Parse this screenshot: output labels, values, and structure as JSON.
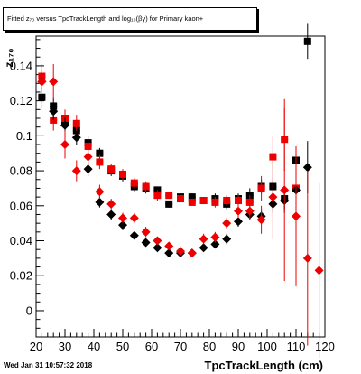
{
  "footer": {
    "timestamp": "Wed Jan 31 10:57:32 2018"
  },
  "chart_data": {
    "type": "scatter",
    "title": "Fitted  z₇₀ versus TpcTrackLength and log₁₀(βγ) for Primary kaon+",
    "xlabel": "TpcTrackLength (cm)",
    "ylabel": "z₁₇₀",
    "xlim": [
      20,
      120
    ],
    "ylim": [
      -0.015,
      0.157
    ],
    "x_ticks": [
      "20",
      "30",
      "40",
      "50",
      "60",
      "70",
      "80",
      "90",
      "100",
      "110",
      "120"
    ],
    "y_ticks": [
      "0",
      "0.02",
      "0.04",
      "0.06",
      "0.08",
      "0.1",
      "0.12",
      "0.14"
    ],
    "grid": false,
    "colors": {
      "black": "#000000",
      "red": "#ee0000"
    },
    "series": [
      {
        "color": "black",
        "marker": "square",
        "x": [
          22,
          26,
          30,
          34,
          38,
          42,
          46,
          50,
          54,
          58,
          62,
          66,
          70,
          74,
          78,
          82,
          86,
          90,
          94,
          98,
          102,
          106,
          110,
          114
        ],
        "y": [
          0.122,
          0.117,
          0.108,
          0.103,
          0.096,
          0.09,
          0.08,
          0.077,
          0.071,
          0.07,
          0.069,
          0.061,
          0.065,
          0.065,
          0.063,
          0.064,
          0.061,
          0.064,
          0.066,
          0.071,
          0.071,
          0.064,
          0.086,
          0.154
        ],
        "err": [
          0.006,
          0.005,
          0.005,
          0.004,
          0.004,
          0.003,
          0.003,
          0.003,
          0.003,
          0.003,
          0.002,
          0.002,
          0.002,
          0.002,
          0.002,
          0.003,
          0.003,
          0.003,
          0.004,
          0.004,
          0.005,
          0.006,
          0.008,
          0.01
        ]
      },
      {
        "color": "red",
        "marker": "square",
        "x": [
          22,
          26,
          30,
          34,
          38,
          42,
          46,
          50,
          54,
          58,
          62,
          66,
          70,
          74,
          78,
          82,
          86,
          90,
          94,
          98,
          102,
          106,
          110
        ],
        "y": [
          0.134,
          0.109,
          0.11,
          0.107,
          0.094,
          0.085,
          0.081,
          0.078,
          0.073,
          0.071,
          0.066,
          0.066,
          0.064,
          0.062,
          0.063,
          0.062,
          0.063,
          0.063,
          0.062,
          0.07,
          0.088,
          0.098,
          0.07
        ],
        "err": [
          0.007,
          0.006,
          0.005,
          0.005,
          0.004,
          0.004,
          0.003,
          0.003,
          0.003,
          0.003,
          0.003,
          0.002,
          0.002,
          0.002,
          0.002,
          0.003,
          0.003,
          0.003,
          0.004,
          0.007,
          0.012,
          0.018,
          0.012
        ]
      },
      {
        "color": "black",
        "marker": "diamond",
        "x": [
          22,
          26,
          30,
          34,
          38,
          42,
          46,
          50,
          54,
          58,
          62,
          66,
          70,
          74,
          78,
          82,
          86,
          90,
          94,
          98,
          102,
          106,
          110,
          114
        ],
        "y": [
          0.131,
          0.114,
          0.106,
          0.099,
          0.081,
          0.062,
          0.055,
          0.049,
          0.043,
          0.039,
          0.036,
          0.033,
          0.033,
          0.033,
          0.036,
          0.038,
          0.041,
          0.051,
          0.055,
          0.054,
          0.061,
          0.063,
          0.069,
          0.082
        ],
        "err": [
          0.006,
          0.005,
          0.005,
          0.004,
          0.004,
          0.003,
          0.003,
          0.003,
          0.002,
          0.002,
          0.002,
          0.002,
          0.002,
          0.002,
          0.002,
          0.002,
          0.003,
          0.003,
          0.003,
          0.004,
          0.005,
          0.007,
          0.01,
          0.015
        ]
      },
      {
        "color": "red",
        "marker": "diamond",
        "x": [
          22,
          26,
          30,
          34,
          38,
          42,
          46,
          50,
          54,
          58,
          62,
          66,
          70,
          74,
          78,
          82,
          86,
          90,
          94,
          98,
          102,
          106,
          110,
          114,
          118
        ],
        "y": [
          0.131,
          0.131,
          0.095,
          0.08,
          0.088,
          0.068,
          0.061,
          0.053,
          0.053,
          0.045,
          0.04,
          0.037,
          0.034,
          0.033,
          0.041,
          0.042,
          0.05,
          0.057,
          0.057,
          0.052,
          0.065,
          0.069,
          0.054,
          0.03,
          0.023
        ],
        "err": [
          0.01,
          0.01,
          0.008,
          0.006,
          0.005,
          0.004,
          0.003,
          0.003,
          0.003,
          0.003,
          0.002,
          0.002,
          0.002,
          0.002,
          0.003,
          0.003,
          0.003,
          0.004,
          0.005,
          0.008,
          0.024,
          0.052,
          0.04,
          0.05,
          0.05
        ]
      }
    ]
  }
}
